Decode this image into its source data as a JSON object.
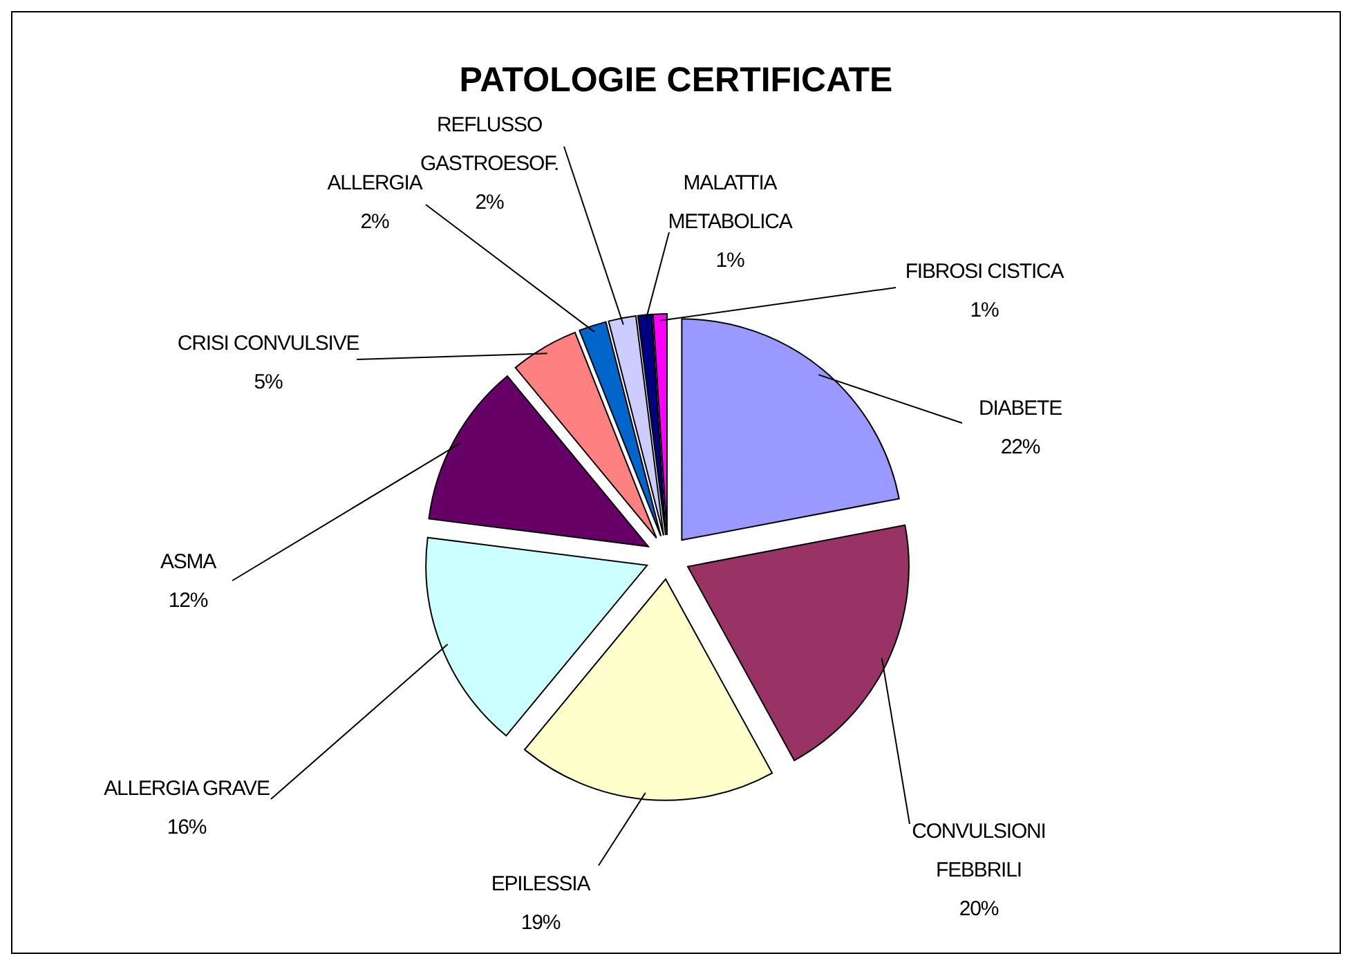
{
  "chart_data": {
    "type": "pie",
    "title": "PATOLOGIE CERTIFICATE",
    "categories": [
      "DIABETE",
      "CONVULSIONI FEBBRILI",
      "EPILESSIA",
      "ALLERGIA GRAVE",
      "ASMA",
      "CRISI CONVULSIVE",
      "ALLERGIA",
      "REFLUSSO GASTROESOF.",
      "MALATTIA METABOLICA",
      "FIBROSI CISTICA"
    ],
    "values": [
      22,
      20,
      19,
      16,
      12,
      5,
      2,
      2,
      1,
      1
    ],
    "value_labels": [
      "22%",
      "20%",
      "19%",
      "16%",
      "12%",
      "5%",
      "2%",
      "2%",
      "1%",
      "1%"
    ],
    "colors": [
      "#9999ff",
      "#993366",
      "#ffffcc",
      "#ccffff",
      "#660066",
      "#ff8080",
      "#0066cc",
      "#ccccff",
      "#000080",
      "#ff00ff"
    ]
  }
}
